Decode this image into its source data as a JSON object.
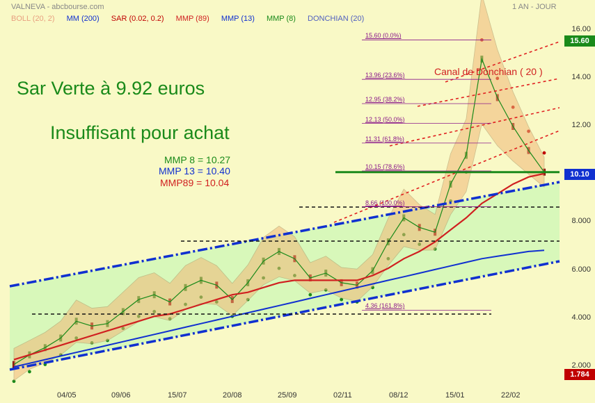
{
  "header": {
    "title": "VALNEVA - abcbourse.com",
    "period": "1 AN - JOUR"
  },
  "legend": [
    {
      "label": "BOLL (20, 2)",
      "color": "#e8a080"
    },
    {
      "label": "MM (200)",
      "color": "#1030d0"
    },
    {
      "label": "SAR (0.02, 0.2)",
      "color": "#c00000"
    },
    {
      "label": "MMP (89)",
      "color": "#d02020"
    },
    {
      "label": "MMP (13)",
      "color": "#1030d0"
    },
    {
      "label": "MMP (8)",
      "color": "#1a8a1a"
    },
    {
      "label": "DONCHIAN (20)",
      "color": "#5060c0"
    }
  ],
  "annotations": {
    "sar_title": "Sar Verte à 9.92 euros",
    "insuffisant": "Insuffisant pour achat",
    "mmp8": "MMP 8 = 10.27",
    "mmp13": "MMP 13 = 10.40",
    "mmp89": "MMP89 = 10.04",
    "canal": "Canal de Donchian ( 20 )"
  },
  "fib_levels": [
    {
      "label": "15.60  (0.0%)",
      "value": 15.6
    },
    {
      "label": "13.96  (23.6%)",
      "value": 13.96
    },
    {
      "label": "12.95  (38.2%)",
      "value": 12.95
    },
    {
      "label": "12.13  (50.0%)",
      "value": 12.13
    },
    {
      "label": "11.31  (61.8%)",
      "value": 11.31
    },
    {
      "label": "10.15  (78.6%)",
      "value": 10.15
    },
    {
      "label": "8.66  (100.0%)",
      "value": 8.66
    },
    {
      "label": "4.36  (161.8%)",
      "value": 4.36
    }
  ],
  "badges": {
    "last": "15.60",
    "current": "10.10",
    "low": "1.784"
  },
  "chart_data": {
    "type": "line",
    "title": "VALNEVA - abcbourse.com",
    "period": "1 AN - JOUR",
    "y_ticks": [
      "2.000",
      "4.000",
      "6.000",
      "8.000",
      "10.00",
      "12.00",
      "14.00",
      "16.00"
    ],
    "x_ticks": [
      "04/05",
      "09/06",
      "15/07",
      "20/08",
      "25/09",
      "02/11",
      "08/12",
      "15/01",
      "22/02"
    ],
    "ylim": [
      1.5,
      16.5
    ],
    "series": [
      {
        "name": "Cours",
        "values": [
          2.1,
          2.5,
          2.8,
          3.2,
          3.9,
          3.7,
          3.8,
          4.3,
          4.8,
          5.0,
          4.7,
          5.3,
          5.6,
          5.4,
          4.8,
          5.5,
          6.4,
          6.8,
          6.5,
          5.7,
          5.9,
          5.5,
          5.4,
          6.0,
          7.2,
          8.2,
          7.8,
          7.6,
          9.6,
          10.8,
          14.8,
          13.2,
          12.0,
          11.0,
          10.1
        ]
      },
      {
        "name": "MMP (89)",
        "values": [
          2.3,
          2.5,
          2.7,
          2.9,
          3.1,
          3.3,
          3.5,
          3.7,
          3.9,
          4.1,
          4.2,
          4.4,
          4.6,
          4.8,
          5.0,
          5.1,
          5.3,
          5.5,
          5.6,
          5.6,
          5.6,
          5.6,
          5.6,
          5.8,
          6.1,
          6.5,
          6.8,
          7.2,
          7.7,
          8.2,
          8.8,
          9.2,
          9.6,
          9.9,
          10.04
        ]
      },
      {
        "name": "MM (200)",
        "values": [
          2.0,
          2.15,
          2.3,
          2.45,
          2.6,
          2.75,
          2.9,
          3.05,
          3.2,
          3.35,
          3.5,
          3.65,
          3.8,
          3.95,
          4.1,
          4.25,
          4.4,
          4.55,
          4.7,
          4.85,
          5.0,
          5.15,
          5.3,
          5.45,
          5.6,
          5.75,
          5.9,
          6.05,
          6.2,
          6.35,
          6.5,
          6.6,
          6.7,
          6.8,
          6.85
        ]
      }
    ]
  },
  "xaxis": [
    "04/05",
    "09/06",
    "15/07",
    "20/08",
    "25/09",
    "02/11",
    "08/12",
    "15/01",
    "22/02"
  ],
  "yaxis": [
    "2.000",
    "4.000",
    "6.000",
    "8.000",
    "10.00",
    "12.00",
    "14.00",
    "16.00"
  ]
}
